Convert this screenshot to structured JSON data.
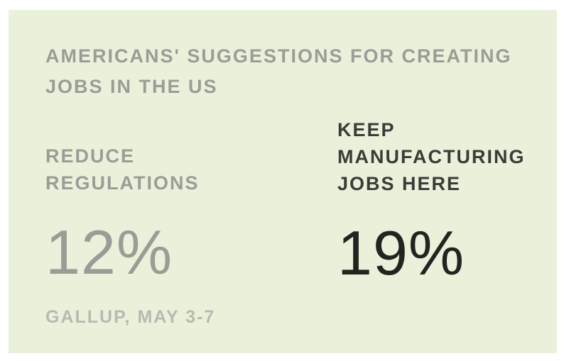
{
  "title": {
    "line1": "AMERICANS' SUGGESTIONS FOR CREATING",
    "line2": "JOBS IN THE US"
  },
  "stats": [
    {
      "label_lines": [
        "REDUCE",
        "REGULATIONS"
      ],
      "value": "12%"
    },
    {
      "label_lines": [
        "KEEP",
        "MANUFACTURING",
        "JOBS HERE"
      ],
      "value": "19%"
    }
  ],
  "source": "GALLUP, MAY 3-7",
  "colors": {
    "background": "#eaf1db",
    "muted_text": "#9a9d96",
    "highlight_text": "#222420"
  }
}
